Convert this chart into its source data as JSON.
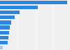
{
  "values": [
    1895,
    1070,
    545,
    425,
    310,
    270,
    250,
    235,
    215,
    80
  ],
  "bar_color": "#2e86de",
  "bar_color_last": "#a8c8f0",
  "background_color": "#f0f0f0",
  "xlim": [
    0,
    1980
  ]
}
